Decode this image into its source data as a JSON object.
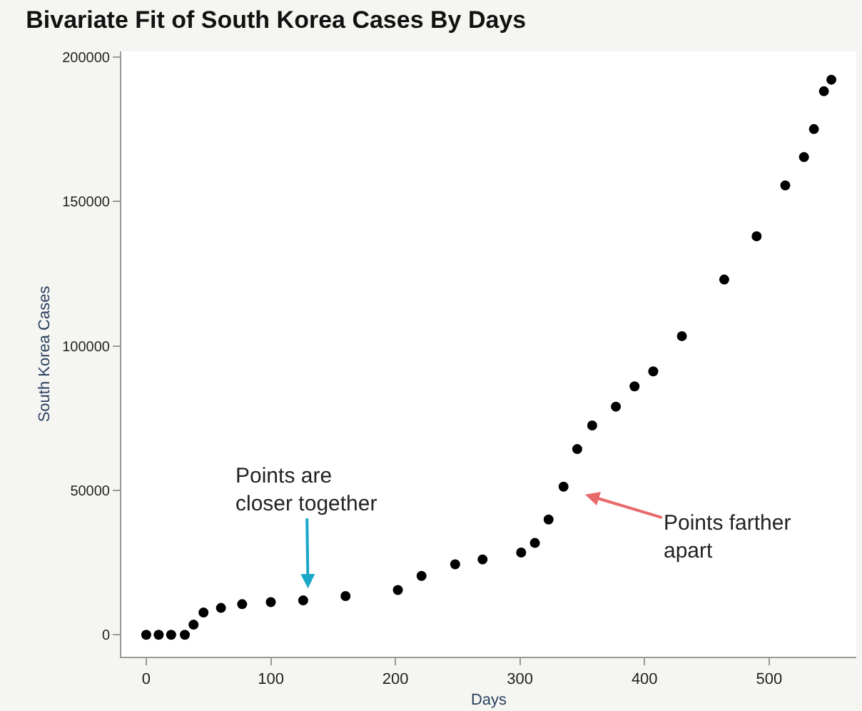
{
  "chart_data": {
    "type": "scatter",
    "title": "Bivariate Fit of South Korea Cases By Days",
    "xlabel": "Days",
    "ylabel": "South Korea Cases",
    "x": [
      0,
      10,
      20,
      31,
      38,
      46,
      60,
      77,
      100,
      126,
      160,
      202,
      221,
      248,
      270,
      301,
      312,
      323,
      335,
      346,
      358,
      377,
      392,
      407,
      430,
      464,
      490,
      513,
      528,
      536,
      544,
      550
    ],
    "series": [
      {
        "color": "#000000",
        "values": [
          0,
          0,
          0,
          0,
          3500,
          7700,
          9300,
          10600,
          11300,
          11900,
          13400,
          15500,
          20400,
          24400,
          26100,
          28500,
          31800,
          39900,
          51300,
          64300,
          72500,
          79000,
          86000,
          91200,
          103400,
          123000,
          138000,
          155600,
          165400,
          175100,
          188200,
          192200
        ]
      }
    ],
    "annotations": [
      "Points are\ncloser together",
      "Points farther\napart"
    ],
    "xlim": [
      -20,
      570
    ],
    "ylim": [
      -7600,
      202000
    ],
    "xticks": [
      0,
      100,
      200,
      300,
      400,
      500
    ],
    "yticks": [
      0,
      50000,
      100000,
      150000,
      200000
    ],
    "marker": "circle",
    "legend": false
  }
}
